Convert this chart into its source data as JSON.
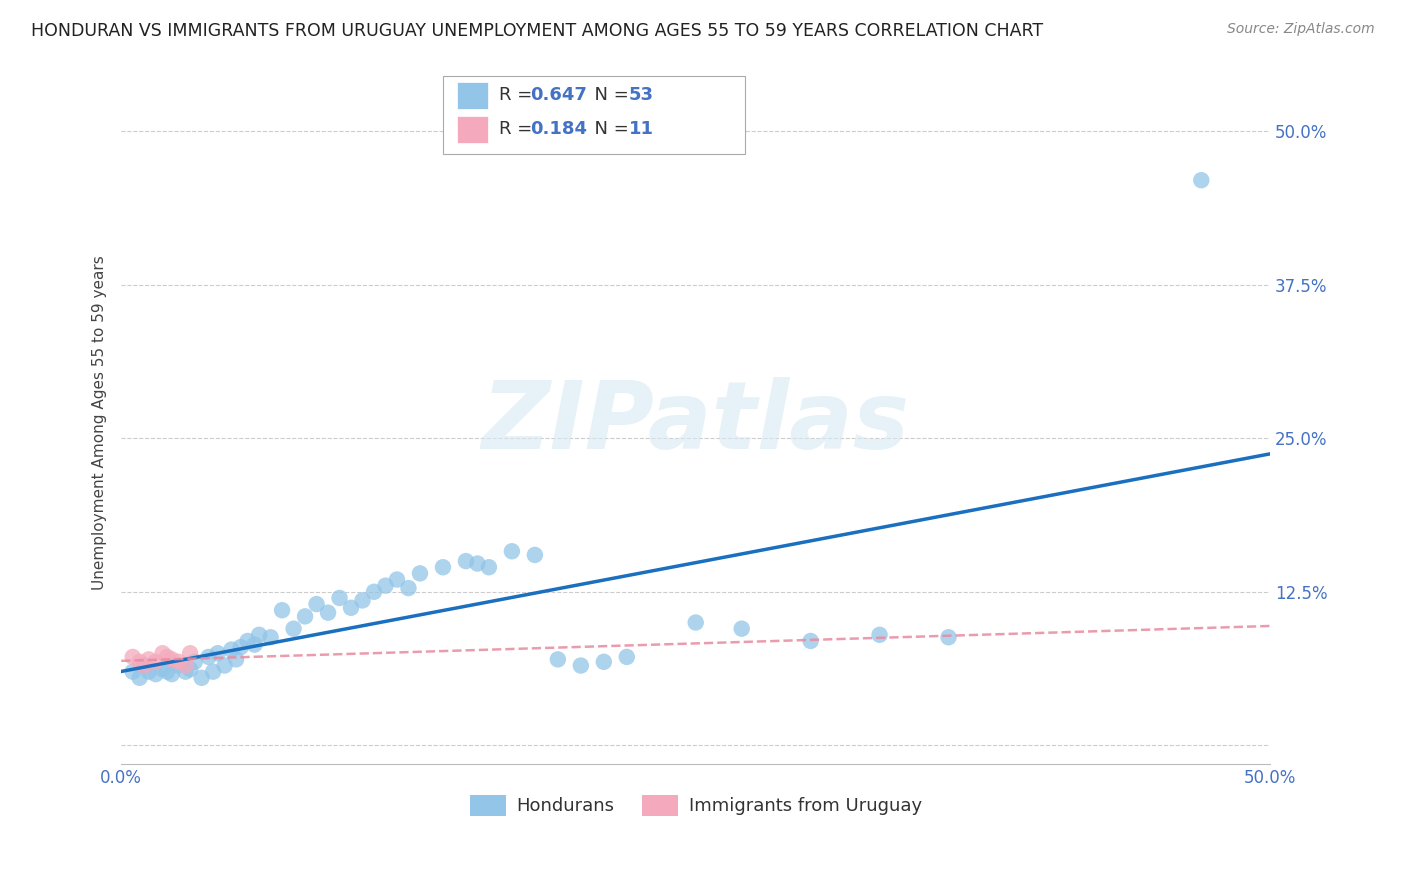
{
  "title": "HONDURAN VS IMMIGRANTS FROM URUGUAY UNEMPLOYMENT AMONG AGES 55 TO 59 YEARS CORRELATION CHART",
  "source": "Source: ZipAtlas.com",
  "ylabel": "Unemployment Among Ages 55 to 59 years",
  "xlim": [
    0.0,
    0.5
  ],
  "ylim": [
    -0.015,
    0.54
  ],
  "ytick_vals": [
    0.0,
    0.125,
    0.25,
    0.375,
    0.5
  ],
  "ytick_labels": [
    "",
    "12.5%",
    "25.0%",
    "37.5%",
    "50.0%"
  ],
  "xtick_vals": [
    0.0,
    0.1,
    0.2,
    0.3,
    0.4,
    0.5
  ],
  "xtick_labels": [
    "0.0%",
    "",
    "",
    "",
    "",
    "50.0%"
  ],
  "honduran_color": "#92C5E8",
  "uruguay_color": "#F4AABC",
  "honduran_line_color": "#1A6FBF",
  "uruguay_line_color": "#E88AA0",
  "background_color": "#FFFFFF",
  "watermark": "ZIPatlas",
  "legend_R1": "0.647",
  "legend_N1": "53",
  "legend_R2": "0.184",
  "legend_N2": "11",
  "grid_color": "#CCCCCC",
  "tick_color": "#4472C4",
  "title_fontsize": 12.5,
  "source_fontsize": 10,
  "axis_label_fontsize": 11,
  "tick_fontsize": 12,
  "hx": [
    0.005,
    0.008,
    0.01,
    0.012,
    0.015,
    0.018,
    0.02,
    0.022,
    0.025,
    0.028,
    0.03,
    0.032,
    0.035,
    0.038,
    0.04,
    0.042,
    0.045,
    0.048,
    0.05,
    0.052,
    0.055,
    0.058,
    0.06,
    0.065,
    0.07,
    0.075,
    0.08,
    0.085,
    0.09,
    0.095,
    0.1,
    0.105,
    0.11,
    0.115,
    0.12,
    0.125,
    0.13,
    0.14,
    0.15,
    0.155,
    0.16,
    0.17,
    0.18,
    0.19,
    0.2,
    0.21,
    0.22,
    0.25,
    0.27,
    0.3,
    0.33,
    0.36,
    0.47
  ],
  "hy": [
    0.06,
    0.055,
    0.065,
    0.06,
    0.058,
    0.062,
    0.06,
    0.058,
    0.065,
    0.06,
    0.062,
    0.068,
    0.055,
    0.072,
    0.06,
    0.075,
    0.065,
    0.078,
    0.07,
    0.08,
    0.085,
    0.082,
    0.09,
    0.088,
    0.11,
    0.095,
    0.105,
    0.115,
    0.108,
    0.12,
    0.112,
    0.118,
    0.125,
    0.13,
    0.135,
    0.128,
    0.14,
    0.145,
    0.15,
    0.148,
    0.145,
    0.158,
    0.155,
    0.07,
    0.065,
    0.068,
    0.072,
    0.1,
    0.095,
    0.085,
    0.09,
    0.088,
    0.46
  ],
  "ux": [
    0.005,
    0.008,
    0.01,
    0.012,
    0.015,
    0.018,
    0.02,
    0.022,
    0.025,
    0.028,
    0.03
  ],
  "uy": [
    0.072,
    0.068,
    0.065,
    0.07,
    0.068,
    0.075,
    0.072,
    0.07,
    0.068,
    0.065,
    0.075
  ]
}
